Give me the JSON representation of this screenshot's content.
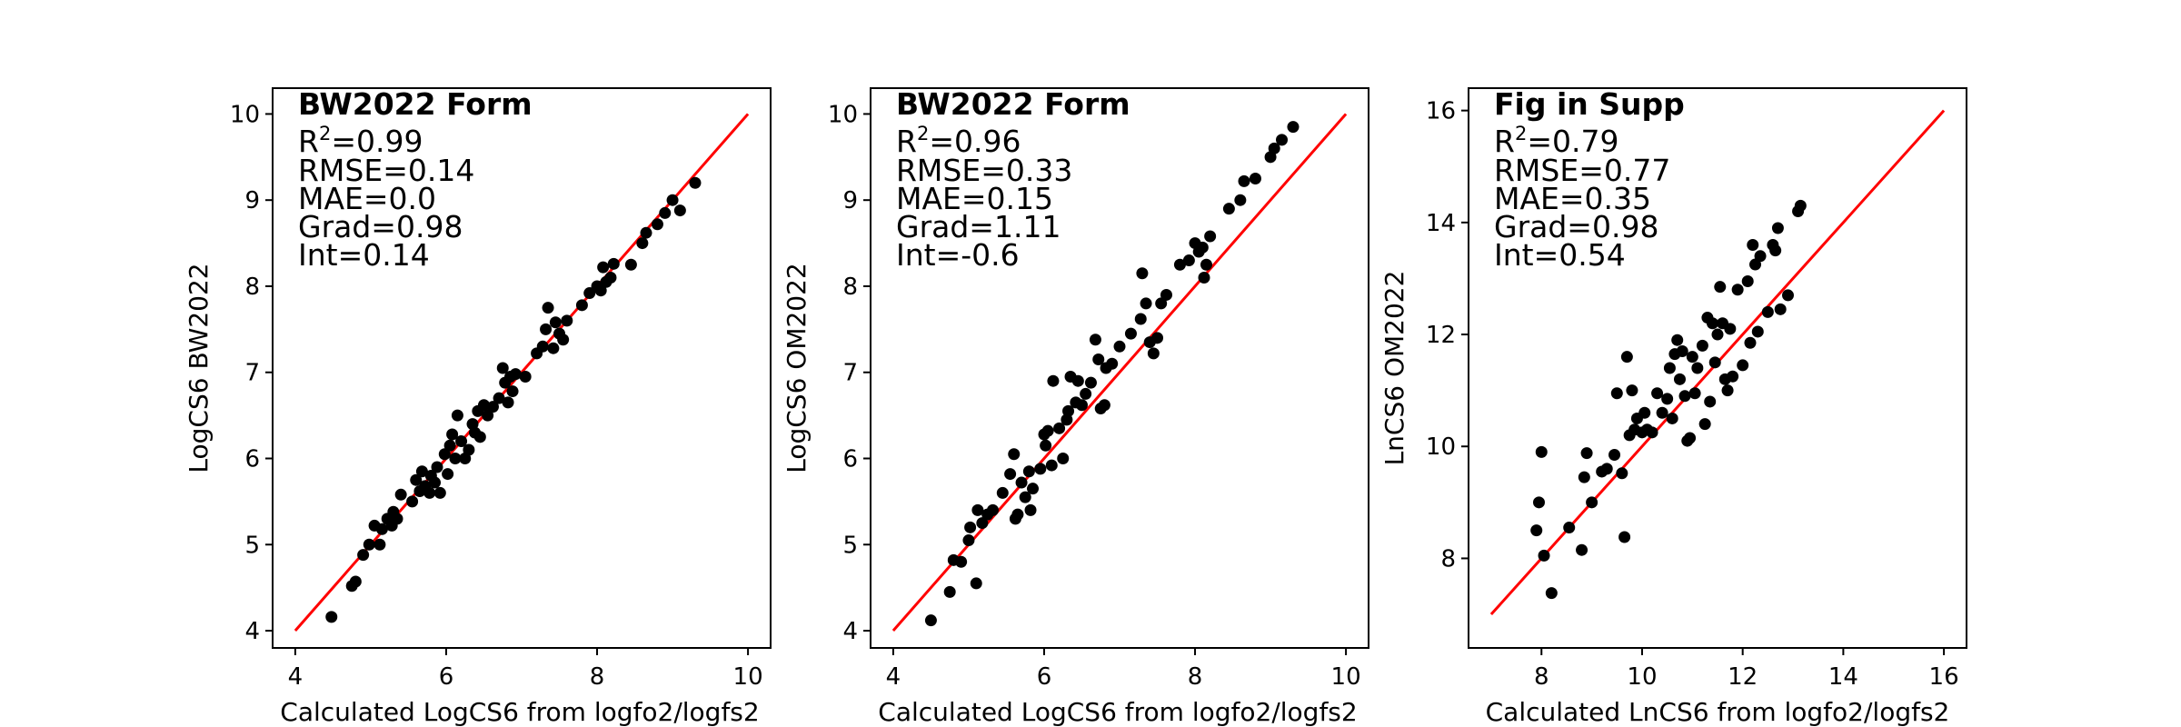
{
  "chart_data": [
    {
      "type": "scatter",
      "xlabel": "Calculated LogCS6 from logfo2/logfs2",
      "ylabel": "LogCS6 BW2022",
      "xlim": [
        3.7,
        10.3
      ],
      "ylim": [
        3.8,
        10.3
      ],
      "xticks": [
        4,
        6,
        8,
        10
      ],
      "yticks": [
        4,
        5,
        6,
        7,
        8,
        9,
        10
      ],
      "tick_labels_x": [
        "4",
        "6",
        "8",
        "10"
      ],
      "tick_labels_y": [
        "4",
        "5",
        "6",
        "7",
        "8",
        "9",
        "10"
      ],
      "annotation": {
        "title": "BW2022 Form",
        "r2_prefix": "R",
        "r2_sup": "2",
        "r2_value": "=0.99",
        "rmse": "RMSE=0.14",
        "mae": "MAE=0.0",
        "grad": "Grad=0.98",
        "int": "Int=0.14"
      },
      "line": {
        "x": [
          4,
          10
        ],
        "y": [
          4,
          10
        ],
        "color": "#ff0000"
      },
      "marker_color": "#000000",
      "points": [
        [
          4.48,
          4.16
        ],
        [
          4.75,
          4.52
        ],
        [
          4.8,
          4.57
        ],
        [
          4.9,
          4.88
        ],
        [
          4.98,
          5.0
        ],
        [
          5.05,
          5.22
        ],
        [
          5.12,
          5.0
        ],
        [
          5.15,
          5.18
        ],
        [
          5.22,
          5.3
        ],
        [
          5.28,
          5.22
        ],
        [
          5.3,
          5.38
        ],
        [
          5.35,
          5.3
        ],
        [
          5.4,
          5.58
        ],
        [
          5.55,
          5.5
        ],
        [
          5.6,
          5.75
        ],
        [
          5.65,
          5.62
        ],
        [
          5.68,
          5.85
        ],
        [
          5.72,
          5.68
        ],
        [
          5.78,
          5.6
        ],
        [
          5.8,
          5.8
        ],
        [
          5.85,
          5.72
        ],
        [
          5.88,
          5.9
        ],
        [
          5.92,
          5.6
        ],
        [
          5.98,
          6.05
        ],
        [
          6.02,
          5.82
        ],
        [
          6.05,
          6.15
        ],
        [
          6.08,
          6.28
        ],
        [
          6.12,
          6.0
        ],
        [
          6.15,
          6.5
        ],
        [
          6.2,
          6.2
        ],
        [
          6.25,
          6.0
        ],
        [
          6.3,
          6.1
        ],
        [
          6.35,
          6.4
        ],
        [
          6.38,
          6.3
        ],
        [
          6.42,
          6.55
        ],
        [
          6.45,
          6.25
        ],
        [
          6.5,
          6.62
        ],
        [
          6.55,
          6.5
        ],
        [
          6.62,
          6.6
        ],
        [
          6.7,
          6.7
        ],
        [
          6.75,
          7.05
        ],
        [
          6.78,
          6.88
        ],
        [
          6.82,
          6.65
        ],
        [
          6.85,
          6.95
        ],
        [
          6.88,
          6.78
        ],
        [
          6.92,
          6.98
        ],
        [
          7.05,
          6.95
        ],
        [
          7.2,
          7.22
        ],
        [
          7.28,
          7.3
        ],
        [
          7.32,
          7.5
        ],
        [
          7.35,
          7.75
        ],
        [
          7.42,
          7.28
        ],
        [
          7.45,
          7.58
        ],
        [
          7.5,
          7.45
        ],
        [
          7.55,
          7.38
        ],
        [
          7.6,
          7.6
        ],
        [
          7.8,
          7.78
        ],
        [
          7.9,
          7.92
        ],
        [
          8.0,
          8.0
        ],
        [
          8.05,
          7.95
        ],
        [
          8.08,
          8.22
        ],
        [
          8.12,
          8.05
        ],
        [
          8.18,
          8.1
        ],
        [
          8.22,
          8.26
        ],
        [
          8.45,
          8.25
        ],
        [
          8.6,
          8.5
        ],
        [
          8.65,
          8.62
        ],
        [
          8.8,
          8.72
        ],
        [
          8.9,
          8.85
        ],
        [
          9.0,
          9.0
        ],
        [
          9.1,
          8.88
        ],
        [
          9.3,
          9.2
        ]
      ]
    },
    {
      "type": "scatter",
      "xlabel": "Calculated LogCS6 from logfo2/logfs2",
      "ylabel": "LogCS6 OM2022",
      "xlim": [
        3.7,
        10.3
      ],
      "ylim": [
        3.8,
        10.3
      ],
      "xticks": [
        4,
        6,
        8,
        10
      ],
      "yticks": [
        4,
        5,
        6,
        7,
        8,
        9,
        10
      ],
      "tick_labels_x": [
        "4",
        "6",
        "8",
        "10"
      ],
      "tick_labels_y": [
        "4",
        "5",
        "6",
        "7",
        "8",
        "9",
        "10"
      ],
      "annotation": {
        "title": "BW2022 Form",
        "r2_prefix": "R",
        "r2_sup": "2",
        "r2_value": "=0.96",
        "rmse": "RMSE=0.33",
        "mae": "MAE=0.15",
        "grad": "Grad=1.11",
        "int": "Int=-0.6"
      },
      "line": {
        "x": [
          4,
          10
        ],
        "y": [
          4,
          10
        ],
        "color": "#ff0000"
      },
      "marker_color": "#000000",
      "points": [
        [
          4.5,
          4.12
        ],
        [
          4.75,
          4.45
        ],
        [
          4.8,
          4.82
        ],
        [
          4.9,
          4.8
        ],
        [
          5.0,
          5.05
        ],
        [
          5.02,
          5.2
        ],
        [
          5.1,
          4.55
        ],
        [
          5.12,
          5.4
        ],
        [
          5.18,
          5.25
        ],
        [
          5.25,
          5.35
        ],
        [
          5.32,
          5.4
        ],
        [
          5.45,
          5.6
        ],
        [
          5.55,
          5.82
        ],
        [
          5.6,
          6.05
        ],
        [
          5.62,
          5.3
        ],
        [
          5.65,
          5.35
        ],
        [
          5.7,
          5.72
        ],
        [
          5.75,
          5.55
        ],
        [
          5.8,
          5.85
        ],
        [
          5.82,
          5.4
        ],
        [
          5.85,
          5.65
        ],
        [
          5.95,
          5.88
        ],
        [
          6.0,
          6.28
        ],
        [
          6.02,
          6.15
        ],
        [
          6.05,
          6.32
        ],
        [
          6.1,
          5.92
        ],
        [
          6.12,
          6.9
        ],
        [
          6.2,
          6.35
        ],
        [
          6.25,
          6.0
        ],
        [
          6.3,
          6.45
        ],
        [
          6.32,
          6.55
        ],
        [
          6.35,
          6.95
        ],
        [
          6.42,
          6.65
        ],
        [
          6.45,
          6.9
        ],
        [
          6.5,
          6.62
        ],
        [
          6.55,
          6.75
        ],
        [
          6.62,
          6.88
        ],
        [
          6.68,
          7.38
        ],
        [
          6.72,
          7.15
        ],
        [
          6.75,
          6.58
        ],
        [
          6.8,
          6.62
        ],
        [
          6.82,
          7.05
        ],
        [
          6.9,
          7.1
        ],
        [
          7.0,
          7.3
        ],
        [
          7.15,
          7.45
        ],
        [
          7.28,
          7.62
        ],
        [
          7.3,
          8.15
        ],
        [
          7.35,
          7.8
        ],
        [
          7.4,
          7.35
        ],
        [
          7.45,
          7.22
        ],
        [
          7.5,
          7.4
        ],
        [
          7.55,
          7.8
        ],
        [
          7.62,
          7.9
        ],
        [
          7.8,
          8.25
        ],
        [
          7.92,
          8.3
        ],
        [
          8.0,
          8.5
        ],
        [
          8.05,
          8.4
        ],
        [
          8.1,
          8.45
        ],
        [
          8.12,
          8.1
        ],
        [
          8.15,
          8.25
        ],
        [
          8.2,
          8.58
        ],
        [
          8.45,
          8.9
        ],
        [
          8.6,
          9.0
        ],
        [
          8.65,
          9.22
        ],
        [
          8.8,
          9.25
        ],
        [
          9.0,
          9.5
        ],
        [
          9.05,
          9.6
        ],
        [
          9.15,
          9.7
        ],
        [
          9.3,
          9.85
        ]
      ]
    },
    {
      "type": "scatter",
      "xlabel": "Calculated LnCS6 from logfo2/logfs2",
      "ylabel": "LnCS6 OM2022",
      "xlim": [
        6.55,
        16.45
      ],
      "ylim": [
        6.4,
        16.4
      ],
      "xticks": [
        8,
        10,
        12,
        14,
        16
      ],
      "yticks": [
        8,
        10,
        12,
        14,
        16
      ],
      "tick_labels_x": [
        "8",
        "10",
        "12",
        "14",
        "16"
      ],
      "tick_labels_y": [
        "8",
        "10",
        "12",
        "14",
        "16"
      ],
      "annotation": {
        "title": "Fig in Supp",
        "r2_prefix": "R",
        "r2_sup": "2",
        "r2_value": "=0.79",
        "rmse": "RMSE=0.77",
        "mae": "MAE=0.35",
        "grad": "Grad=0.98",
        "int": "Int=0.54"
      },
      "line": {
        "x": [
          7,
          16
        ],
        "y": [
          7,
          16
        ],
        "color": "#ff0000"
      },
      "marker_color": "#000000",
      "points": [
        [
          7.9,
          8.5
        ],
        [
          7.95,
          9.0
        ],
        [
          8.0,
          9.9
        ],
        [
          8.05,
          8.05
        ],
        [
          8.2,
          7.38
        ],
        [
          8.55,
          8.55
        ],
        [
          8.8,
          8.15
        ],
        [
          8.85,
          9.45
        ],
        [
          8.9,
          9.88
        ],
        [
          9.0,
          9.0
        ],
        [
          9.2,
          9.55
        ],
        [
          9.3,
          9.6
        ],
        [
          9.45,
          9.85
        ],
        [
          9.5,
          10.95
        ],
        [
          9.6,
          9.52
        ],
        [
          9.65,
          8.38
        ],
        [
          9.7,
          11.6
        ],
        [
          9.75,
          10.2
        ],
        [
          9.8,
          11.0
        ],
        [
          9.85,
          10.3
        ],
        [
          9.9,
          10.5
        ],
        [
          10.0,
          10.25
        ],
        [
          10.05,
          10.6
        ],
        [
          10.1,
          10.3
        ],
        [
          10.2,
          10.25
        ],
        [
          10.3,
          10.95
        ],
        [
          10.4,
          10.6
        ],
        [
          10.5,
          10.85
        ],
        [
          10.55,
          11.4
        ],
        [
          10.6,
          10.5
        ],
        [
          10.65,
          11.65
        ],
        [
          10.7,
          11.9
        ],
        [
          10.75,
          11.2
        ],
        [
          10.8,
          11.7
        ],
        [
          10.85,
          10.9
        ],
        [
          10.9,
          10.1
        ],
        [
          10.95,
          10.15
        ],
        [
          11.0,
          11.6
        ],
        [
          11.05,
          10.95
        ],
        [
          11.1,
          11.4
        ],
        [
          11.2,
          11.8
        ],
        [
          11.25,
          10.4
        ],
        [
          11.3,
          12.3
        ],
        [
          11.35,
          10.8
        ],
        [
          11.4,
          12.2
        ],
        [
          11.45,
          11.5
        ],
        [
          11.5,
          12.0
        ],
        [
          11.55,
          12.85
        ],
        [
          11.6,
          12.2
        ],
        [
          11.65,
          11.2
        ],
        [
          11.7,
          11.0
        ],
        [
          11.75,
          12.1
        ],
        [
          11.8,
          11.25
        ],
        [
          11.9,
          12.8
        ],
        [
          12.0,
          11.45
        ],
        [
          12.1,
          12.95
        ],
        [
          12.15,
          11.85
        ],
        [
          12.2,
          13.6
        ],
        [
          12.25,
          13.25
        ],
        [
          12.3,
          12.05
        ],
        [
          12.35,
          13.4
        ],
        [
          12.5,
          12.4
        ],
        [
          12.6,
          13.6
        ],
        [
          12.65,
          13.5
        ],
        [
          12.7,
          13.9
        ],
        [
          12.75,
          12.45
        ],
        [
          12.9,
          12.7
        ],
        [
          13.1,
          14.2
        ],
        [
          13.15,
          14.3
        ]
      ]
    }
  ]
}
